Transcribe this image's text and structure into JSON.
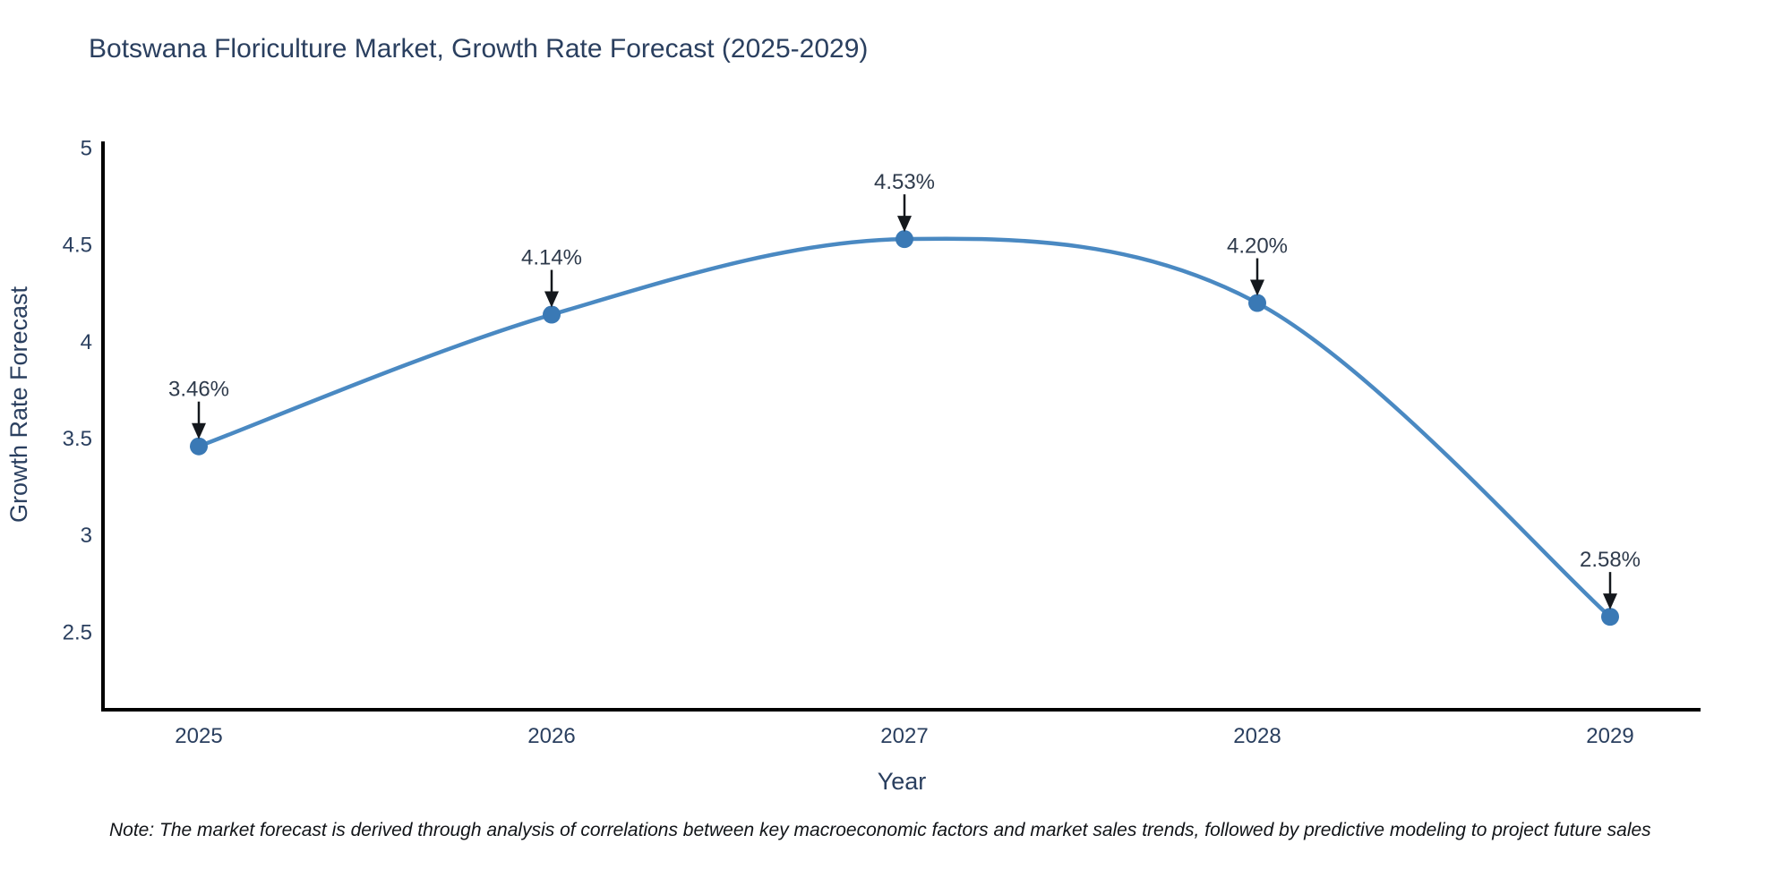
{
  "page": {
    "title": "Botswana Floriculture Market, Growth Rate Forecast (2025-2029)",
    "footnote": "Note: The market forecast is derived through analysis of correlations between key macroeconomic factors and market sales trends, followed by predictive modeling to project future sales"
  },
  "chart_data": {
    "type": "line",
    "title": "Botswana Floriculture Market, Growth Rate Forecast (2025-2029)",
    "xlabel": "Year",
    "ylabel": "Growth Rate Forecast",
    "categories": [
      "2025",
      "2026",
      "2027",
      "2028",
      "2029"
    ],
    "values": [
      3.46,
      4.14,
      4.53,
      4.2,
      2.58
    ],
    "point_labels": [
      "3.46%",
      "4.14%",
      "4.53%",
      "4.20%",
      "2.58%"
    ],
    "ytick_labels": [
      "2.5",
      "3",
      "3.5",
      "4",
      "4.5",
      "5"
    ],
    "ytick_values": [
      2.5,
      3,
      3.5,
      4,
      4.5,
      5
    ],
    "ylim": [
      2.1,
      5.0
    ],
    "grid": false,
    "legend": "none",
    "line_shape": "spline",
    "annotation_style": "label-above-with-down-arrow",
    "colors": {
      "line": "#4a89c2",
      "marker": "#3a79b5",
      "axis": "#000000",
      "text": "#2a3f5f",
      "annotation": "#14181d"
    }
  }
}
